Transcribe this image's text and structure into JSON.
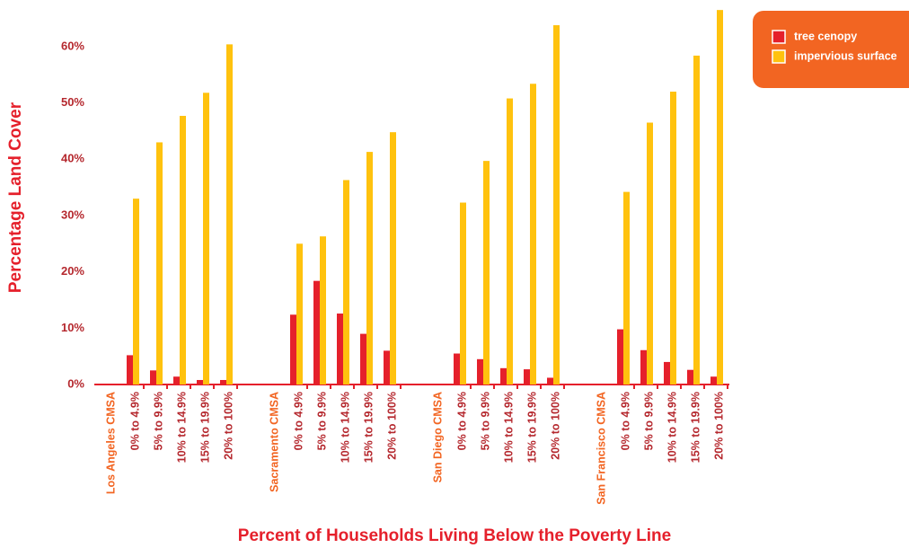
{
  "chart_data": {
    "type": "bar",
    "y_label": "Percentage Land Cover",
    "x_label": "Percent of Households Living Below the Poverty Line",
    "categories": [
      "Los Angeles CMSA",
      "0% to 4.9%",
      "5% to 9.9%",
      "10% to 14.9%",
      "15% to 19.9%",
      "20% to 100%",
      "Sacramento CMSA",
      "0% to 4.9%",
      "5% to 9.9%",
      "10% to 14.9%",
      "15% to 19.9%",
      "20% to 100%",
      "San Diego CMSA",
      "0% to 4.9%",
      "5% to 9.9%",
      "10% to 14.9%",
      "15% to 19.9%",
      "20% to 100%",
      "San Francisco CMSA",
      "0% to 4.9%",
      "5% to 9.9%",
      "10% to 14.9%",
      "15% to 19.9%",
      "20% to 100%"
    ],
    "series": [
      {
        "name": "tree cenopy",
        "color": "#e5202b",
        "values": [
          null,
          5.2,
          2.5,
          1.4,
          0.8,
          0.8,
          null,
          12.4,
          18.4,
          12.6,
          9.0,
          6.0,
          null,
          5.5,
          4.5,
          2.9,
          2.7,
          1.2,
          null,
          9.8,
          6.1,
          4.0,
          2.6,
          1.4
        ]
      },
      {
        "name": "impervious surface",
        "color": "#ffc20e",
        "values": [
          null,
          33.0,
          43.0,
          47.7,
          51.8,
          60.4,
          null,
          25.0,
          26.3,
          36.3,
          41.3,
          44.8,
          null,
          32.3,
          39.7,
          50.8,
          53.4,
          63.8,
          null,
          34.2,
          46.5,
          52.0,
          58.4,
          66.5
        ]
      }
    ],
    "ylim": [
      0,
      67
    ],
    "yticks": [
      {
        "value": 0,
        "label": "0%"
      },
      {
        "value": 10,
        "label": "10%"
      },
      {
        "value": 20,
        "label": "20%"
      },
      {
        "value": 30,
        "label": "30%"
      },
      {
        "value": 40,
        "label": "40%"
      },
      {
        "value": 50,
        "label": "50%"
      },
      {
        "value": 60,
        "label": "60%"
      }
    ],
    "legend": "top right"
  }
}
